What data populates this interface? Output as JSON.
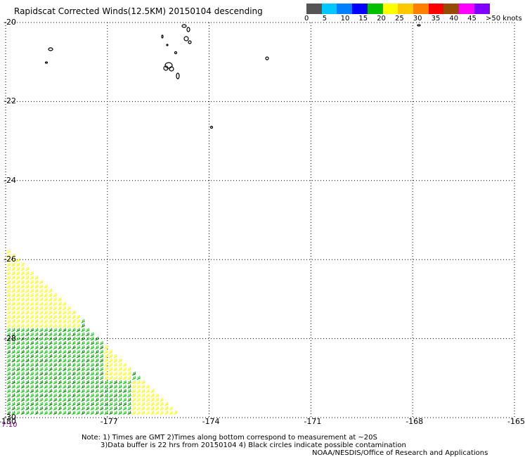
{
  "title": "Rapidscat Corrected Winds(12.5KM) 20150104 descending",
  "colorbar": {
    "colors": [
      "#555555",
      "#00c8ff",
      "#0080ff",
      "#0000ff",
      "#00c000",
      "#ffff00",
      "#ffc800",
      "#ff8000",
      "#ff0000",
      "#964b00",
      "#ff00ff",
      "#8000ff"
    ],
    "labels": [
      "0",
      "5",
      "10",
      "15",
      "20",
      "25",
      "30",
      "35",
      "40",
      "45",
      ">50 knots"
    ]
  },
  "map": {
    "lat_labels": [
      "-20",
      "-22",
      "-24",
      "-26",
      "-28",
      "-30"
    ],
    "lon_labels": [
      "-180",
      "-177",
      "-174",
      "-171",
      "-168",
      "-165"
    ],
    "time_label": "7:10",
    "lat_range": [
      -30,
      -20
    ],
    "lon_range": [
      -180,
      -165
    ],
    "wind_colors": {
      "light": "#ffff00",
      "mid": "#00c000",
      "dark": "#008000"
    },
    "land_color": "#000000"
  },
  "notes": {
    "line1": "Note: 1) Times are GMT 2)Times along bottom correspond to measurement at ~20S",
    "line2": "3)Data buffer is 22 hrs from 20150104 4) Black circles indicate possible contamination",
    "line3": "NOAA/NESDIS/Office of Research and Applications"
  }
}
